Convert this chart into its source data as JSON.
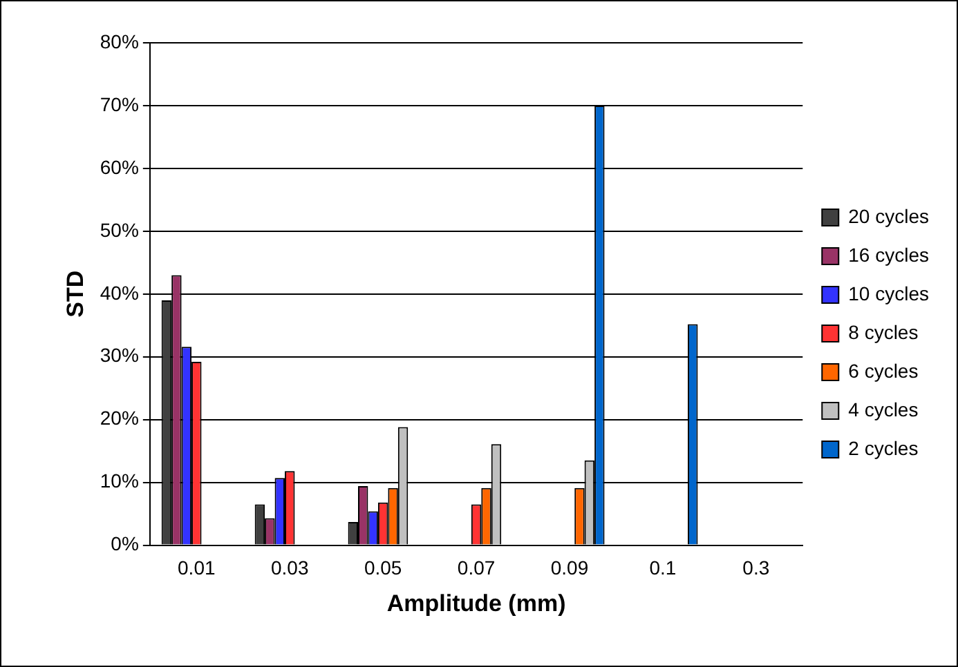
{
  "chart_data": {
    "type": "bar",
    "xlabel": "Amplitude (mm)",
    "ylabel": "STD",
    "categories": [
      "0.01",
      "0.03",
      "0.05",
      "0.07",
      "0.09",
      "0.1",
      "0.3"
    ],
    "series": [
      {
        "name": "20 cycles",
        "color": "#404040",
        "values": [
          39,
          6.5,
          3.7,
          null,
          null,
          null,
          null
        ]
      },
      {
        "name": "16 cycles",
        "color": "#993366",
        "values": [
          43,
          4.3,
          9.4,
          null,
          null,
          null,
          null
        ]
      },
      {
        "name": "10 cycles",
        "color": "#3333ff",
        "values": [
          31.6,
          10.7,
          5.4,
          null,
          null,
          null,
          null
        ]
      },
      {
        "name": "8 cycles",
        "color": "#ff3333",
        "values": [
          29.2,
          11.8,
          6.8,
          6.5,
          null,
          null,
          null
        ]
      },
      {
        "name": "6 cycles",
        "color": "#ff6600",
        "values": [
          null,
          null,
          9.1,
          9.1,
          9.1,
          null,
          null
        ]
      },
      {
        "name": "4 cycles",
        "color": "#c0c0c0",
        "values": [
          null,
          null,
          18.8,
          16.1,
          13.5,
          null,
          null
        ]
      },
      {
        "name": "2 cycles",
        "color": "#0066cc",
        "values": [
          null,
          null,
          null,
          null,
          70,
          35.2,
          null
        ]
      }
    ],
    "ylim": [
      0,
      80
    ],
    "yticks": [
      {
        "value": 0,
        "label": "0%"
      },
      {
        "value": 10,
        "label": "10%"
      },
      {
        "value": 20,
        "label": "20%"
      },
      {
        "value": 30,
        "label": "30%"
      },
      {
        "value": 40,
        "label": "40%"
      },
      {
        "value": 50,
        "label": "50%"
      },
      {
        "value": 60,
        "label": "60%"
      },
      {
        "value": 70,
        "label": "70%"
      },
      {
        "value": 80,
        "label": "80%"
      }
    ],
    "grid": "y",
    "legend": "right"
  }
}
